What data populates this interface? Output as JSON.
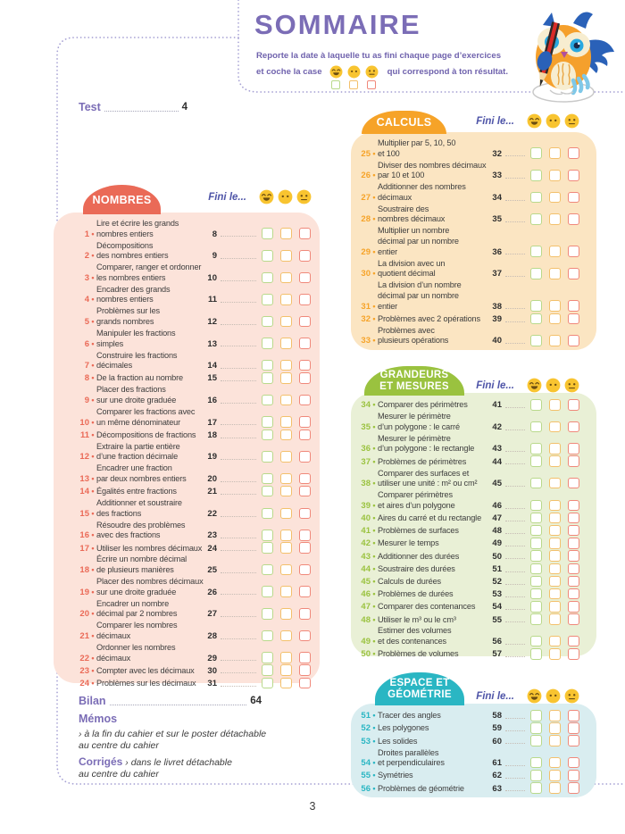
{
  "page_number": "3",
  "header": {
    "title": "SOMMAIRE",
    "subtitle_line1": "Reporte la date à laquelle tu as fini chaque page d’exercices",
    "subtitle_line2_prefix": "et coche la case",
    "subtitle_line2_suffix": "qui correspond à ton résultat."
  },
  "fini_label": "Fini le...",
  "legend_emojis": [
    "happy",
    "neutral",
    "sad"
  ],
  "checkbox_colors": {
    "green": "#b9d98b",
    "orange": "#f3c06b",
    "red": "#f0887a"
  },
  "test": {
    "label": "Test",
    "page": "4"
  },
  "sections": [
    {
      "id": "nombres",
      "title_lines": [
        "NOMBRES"
      ],
      "accent": "#ea6a57",
      "panel_color": "#fce3da",
      "items": [
        {
          "num": "1",
          "lines": [
            "Lire et écrire les grands",
            "nombres entiers"
          ],
          "page": "8"
        },
        {
          "num": "2",
          "lines": [
            "Décompositions",
            "des nombres entiers"
          ],
          "page": "9"
        },
        {
          "num": "3",
          "lines": [
            "Comparer, ranger et ordonner",
            "les nombres entiers"
          ],
          "page": "10"
        },
        {
          "num": "4",
          "lines": [
            "Encadrer des grands",
            "nombres entiers"
          ],
          "page": "11"
        },
        {
          "num": "5",
          "lines": [
            "Problèmes sur les",
            "grands nombres"
          ],
          "page": "12"
        },
        {
          "num": "6",
          "lines": [
            "Manipuler les fractions",
            "simples"
          ],
          "page": "13"
        },
        {
          "num": "7",
          "lines": [
            "Construire les fractions",
            "décimales"
          ],
          "page": "14"
        },
        {
          "num": "8",
          "lines": [
            "De la fraction au nombre"
          ],
          "page": "15"
        },
        {
          "num": "9",
          "lines": [
            "Placer des fractions",
            "sur une droite graduée"
          ],
          "page": "16"
        },
        {
          "num": "10",
          "lines": [
            "Comparer les fractions avec",
            "un même dénominateur"
          ],
          "page": "17"
        },
        {
          "num": "11",
          "lines": [
            "Décompositions de fractions"
          ],
          "page": "18"
        },
        {
          "num": "12",
          "lines": [
            "Extraire la partie entière",
            "d’une fraction décimale"
          ],
          "page": "19"
        },
        {
          "num": "13",
          "lines": [
            "Encadrer une fraction",
            "par deux nombres entiers"
          ],
          "page": "20"
        },
        {
          "num": "14",
          "lines": [
            "Égalités entre fractions"
          ],
          "page": "21"
        },
        {
          "num": "15",
          "lines": [
            "Additionner et soustraire",
            "des fractions"
          ],
          "page": "22"
        },
        {
          "num": "16",
          "lines": [
            "Résoudre des problèmes",
            "avec des fractions"
          ],
          "page": "23"
        },
        {
          "num": "17",
          "lines": [
            "Utiliser les nombres décimaux"
          ],
          "page": "24"
        },
        {
          "num": "18",
          "lines": [
            "Écrire un nombre décimal",
            "de plusieurs manières"
          ],
          "page": "25"
        },
        {
          "num": "19",
          "lines": [
            "Placer des nombres décimaux",
            "sur une droite graduée"
          ],
          "page": "26"
        },
        {
          "num": "20",
          "lines": [
            "Encadrer un nombre",
            "décimal par 2 nombres"
          ],
          "page": "27"
        },
        {
          "num": "21",
          "lines": [
            "Comparer les nombres",
            "décimaux"
          ],
          "page": "28"
        },
        {
          "num": "22",
          "lines": [
            "Ordonner les nombres",
            "décimaux"
          ],
          "page": "29"
        },
        {
          "num": "23",
          "lines": [
            "Compter avec les décimaux"
          ],
          "page": "30"
        },
        {
          "num": "24",
          "lines": [
            "Problèmes sur les décimaux"
          ],
          "page": "31"
        }
      ]
    },
    {
      "id": "calculs",
      "title_lines": [
        "CALCULS"
      ],
      "accent": "#f6a328",
      "panel_color": "#fbe5c2",
      "items": [
        {
          "num": "25",
          "lines": [
            "Multiplier par 5, 10, 50",
            "et 100"
          ],
          "page": "32"
        },
        {
          "num": "26",
          "lines": [
            "Diviser des nombres décimaux",
            "par 10 et 100"
          ],
          "page": "33"
        },
        {
          "num": "27",
          "lines": [
            "Additionner des nombres",
            "décimaux"
          ],
          "page": "34"
        },
        {
          "num": "28",
          "lines": [
            "Soustraire des",
            "nombres décimaux"
          ],
          "page": "35"
        },
        {
          "num": "29",
          "lines": [
            "Multiplier un nombre",
            "décimal par un nombre",
            "entier"
          ],
          "page": "36"
        },
        {
          "num": "30",
          "lines": [
            "La division avec un",
            "quotient décimal"
          ],
          "page": "37"
        },
        {
          "num": "31",
          "lines": [
            "La division d’un nombre",
            "décimal par un nombre",
            "entier"
          ],
          "page": "38"
        },
        {
          "num": "32",
          "lines": [
            "Problèmes avec 2 opérations"
          ],
          "page": "39"
        },
        {
          "num": "33",
          "lines": [
            "Problèmes avec",
            "plusieurs opérations"
          ],
          "page": "40"
        }
      ]
    },
    {
      "id": "grandeurs",
      "title_lines": [
        "GRANDEURS",
        "ET MESURES"
      ],
      "accent": "#9ac23f",
      "panel_color": "#e9f0d6",
      "items": [
        {
          "num": "34",
          "lines": [
            "Comparer des périmètres"
          ],
          "page": "41"
        },
        {
          "num": "35",
          "lines": [
            "Mesurer le périmètre",
            "d’un polygone : le carré"
          ],
          "page": "42"
        },
        {
          "num": "36",
          "lines": [
            "Mesurer le périmètre",
            "d’un polygone : le rectangle"
          ],
          "page": "43"
        },
        {
          "num": "37",
          "lines": [
            "Problèmes de périmètres"
          ],
          "page": "44"
        },
        {
          "num": "38",
          "lines": [
            "Comparer des surfaces et",
            "utiliser une unité : m² ou cm²"
          ],
          "page": "45"
        },
        {
          "num": "39",
          "lines": [
            "Comparer périmètres",
            "et aires d’un polygone"
          ],
          "page": "46"
        },
        {
          "num": "40",
          "lines": [
            "Aires du carré et du rectangle"
          ],
          "page": "47"
        },
        {
          "num": "41",
          "lines": [
            "Problèmes de surfaces"
          ],
          "page": "48"
        },
        {
          "num": "42",
          "lines": [
            "Mesurer le temps"
          ],
          "page": "49"
        },
        {
          "num": "43",
          "lines": [
            "Additionner des durées"
          ],
          "page": "50"
        },
        {
          "num": "44",
          "lines": [
            "Soustraire des durées"
          ],
          "page": "51"
        },
        {
          "num": "45",
          "lines": [
            "Calculs de durées"
          ],
          "page": "52"
        },
        {
          "num": "46",
          "lines": [
            "Problèmes de durées"
          ],
          "page": "53"
        },
        {
          "num": "47",
          "lines": [
            "Comparer des contenances"
          ],
          "page": "54"
        },
        {
          "num": "48",
          "lines": [
            "Utiliser le m³ ou le cm³"
          ],
          "page": "55"
        },
        {
          "num": "49",
          "lines": [
            "Estimer des volumes",
            "et des contenances"
          ],
          "page": "56"
        },
        {
          "num": "50",
          "lines": [
            "Problèmes de volumes"
          ],
          "page": "57"
        }
      ]
    },
    {
      "id": "espace",
      "title_lines": [
        "ESPACE ET",
        "GÉOMÉTRIE"
      ],
      "accent": "#2ab6c3",
      "panel_color": "#d9edf0",
      "items": [
        {
          "num": "51",
          "lines": [
            "Tracer des angles"
          ],
          "page": "58"
        },
        {
          "num": "52",
          "lines": [
            "Les polygones"
          ],
          "page": "59"
        },
        {
          "num": "53",
          "lines": [
            "Les solides"
          ],
          "page": "60"
        },
        {
          "num": "54",
          "lines": [
            "Droites parallèles",
            "et perpendiculaires"
          ],
          "page": "61"
        },
        {
          "num": "55",
          "lines": [
            "Symétries"
          ],
          "page": "62"
        },
        {
          "num": "56",
          "lines": [
            "Problèmes de géométrie"
          ],
          "page": "63"
        }
      ]
    }
  ],
  "footer": {
    "bilan_label": "Bilan",
    "bilan_page": "64",
    "memos_label": "Mémos",
    "memos_note": "› à la fin du cahier et sur le poster détachable\nau centre du cahier",
    "corriges_label": "Corrigés",
    "corriges_note": " › dans le livret détachable\nau centre du cahier"
  }
}
